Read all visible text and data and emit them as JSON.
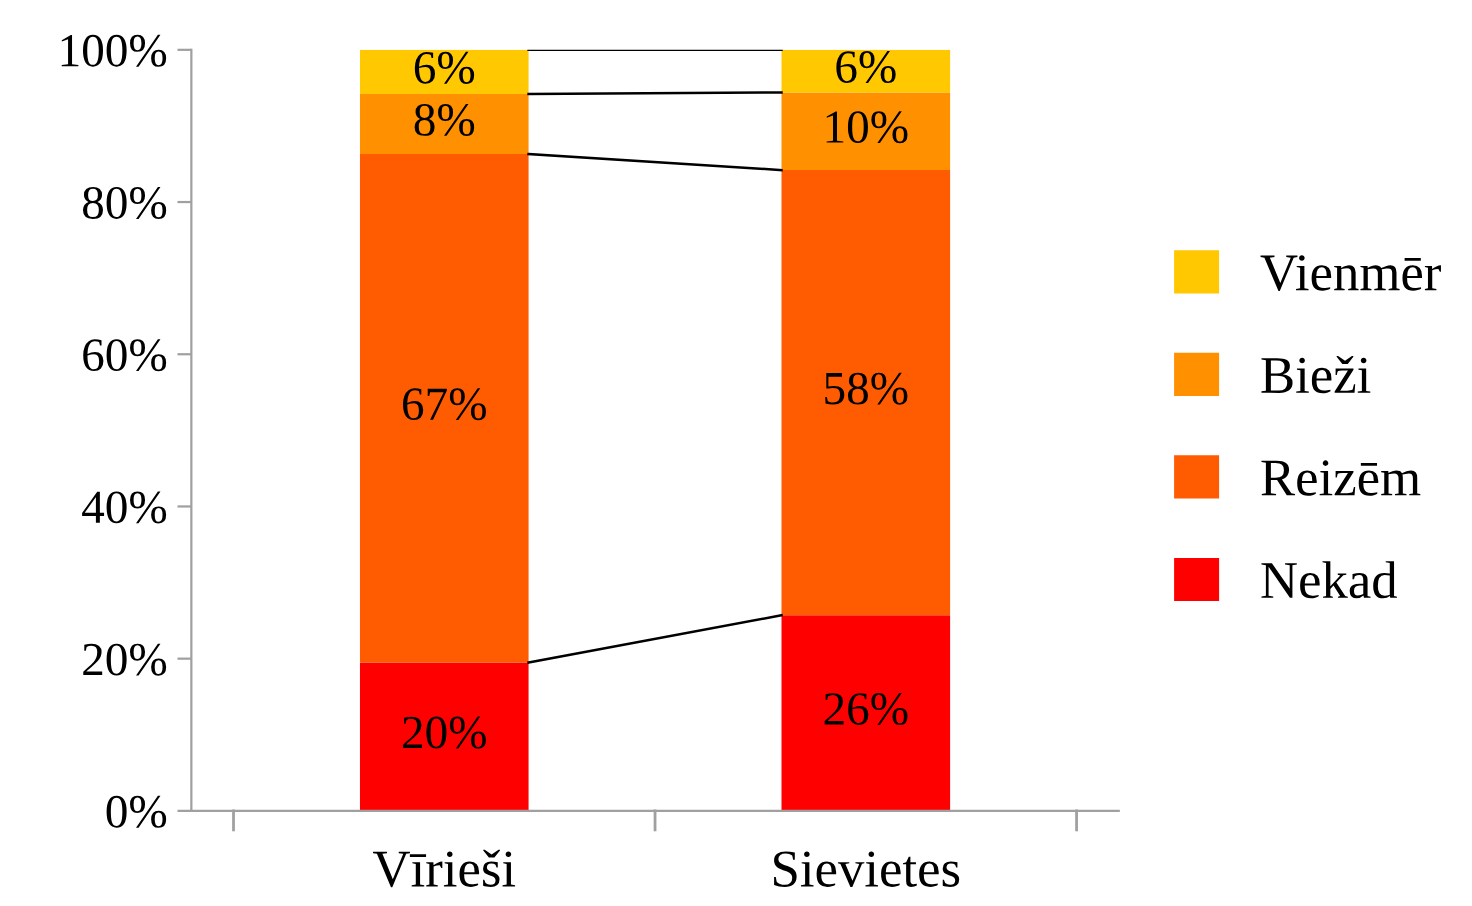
{
  "chart_data": {
    "type": "bar",
    "stacked": true,
    "categories": [
      "Vīrieši",
      "Sievietes"
    ],
    "series": [
      {
        "name": "Nekad",
        "color": "#ff0000",
        "values": [
          19.5,
          25.7
        ],
        "value_labels": [
          "20%",
          "26%"
        ]
      },
      {
        "name": "Reizēm",
        "color": "#ff5b00",
        "values": [
          66.8,
          58.5
        ],
        "value_labels": [
          "67%",
          "58%"
        ]
      },
      {
        "name": "Bieži",
        "color": "#ff9000",
        "values": [
          7.9,
          10.2
        ],
        "value_labels": [
          "8%",
          "10%"
        ]
      },
      {
        "name": "Vienmēr",
        "color": "#ffc800",
        "values": [
          5.8,
          5.6
        ],
        "value_labels": [
          "6%",
          "6%"
        ]
      }
    ],
    "ylim": [
      0,
      100
    ],
    "yticks": [
      {
        "value": 0,
        "label": "0%"
      },
      {
        "value": 20,
        "label": "20%"
      },
      {
        "value": 40,
        "label": "40%"
      },
      {
        "value": 60,
        "label": "60%"
      },
      {
        "value": 80,
        "label": "80%"
      },
      {
        "value": 100,
        "label": "100%"
      }
    ],
    "grid": false,
    "legend": "right"
  }
}
